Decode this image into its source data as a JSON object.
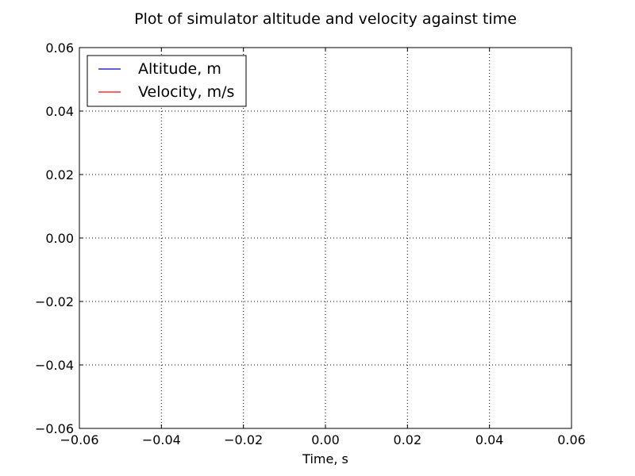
{
  "chart_data": {
    "type": "line",
    "title": "Plot of simulator altitude and velocity against time",
    "xlabel": "Time, s",
    "ylabel": "",
    "xlim": [
      -0.06,
      0.06
    ],
    "ylim": [
      -0.06,
      0.06
    ],
    "x_ticks": [
      "−0.06",
      "−0.04",
      "−0.02",
      "0.00",
      "0.02",
      "0.04",
      "0.06"
    ],
    "y_ticks": [
      "0.06",
      "0.04",
      "0.02",
      "0.00",
      "−0.02",
      "−0.04",
      "−0.06"
    ],
    "x_tick_values": [
      -0.06,
      -0.04,
      -0.02,
      0.0,
      0.02,
      0.04,
      0.06
    ],
    "y_tick_values": [
      0.06,
      0.04,
      0.02,
      0.0,
      -0.02,
      -0.04,
      -0.06
    ],
    "grid": true,
    "legend_position": "top-left",
    "series": [
      {
        "name": "Altitude, m",
        "color": "#0000bf",
        "x": [],
        "y": []
      },
      {
        "name": "Velocity, m/s",
        "color": "#ff0000",
        "x": [],
        "y": []
      }
    ]
  }
}
